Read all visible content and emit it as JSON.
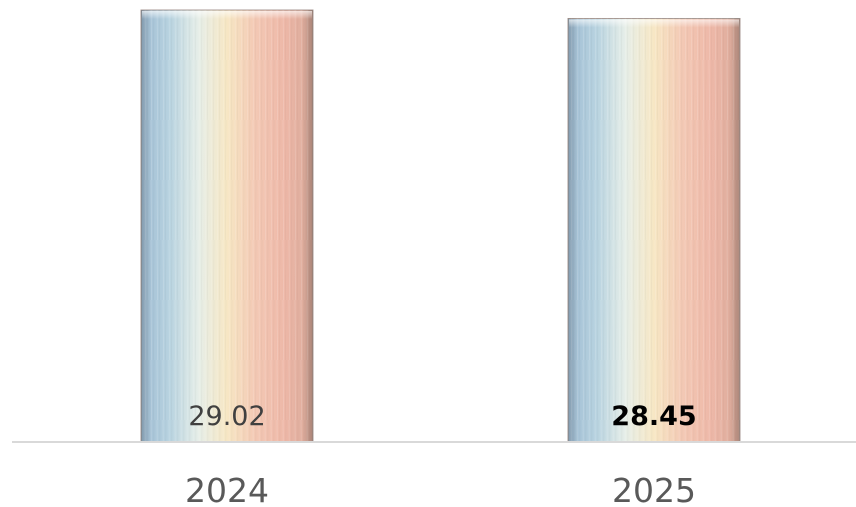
{
  "chart_data": {
    "type": "bar",
    "categories": [
      "2024",
      "2025"
    ],
    "values": [
      29.02,
      28.45
    ],
    "data_labels": [
      "29.02",
      "28.45"
    ],
    "title": "",
    "xlabel": "",
    "ylabel": "",
    "grid": false,
    "legend": "none"
  },
  "colors": {
    "gradient": [
      "#9fbcd3",
      "#b8d3e0",
      "#e6eee8",
      "#f7e7c4",
      "#f3c8b4",
      "#eeb8a8",
      "#d8a898"
    ],
    "axis_line": "#d9d9d9",
    "category_text": "#595959",
    "label_text_first": "#404040",
    "label_text_second": "#000000"
  }
}
